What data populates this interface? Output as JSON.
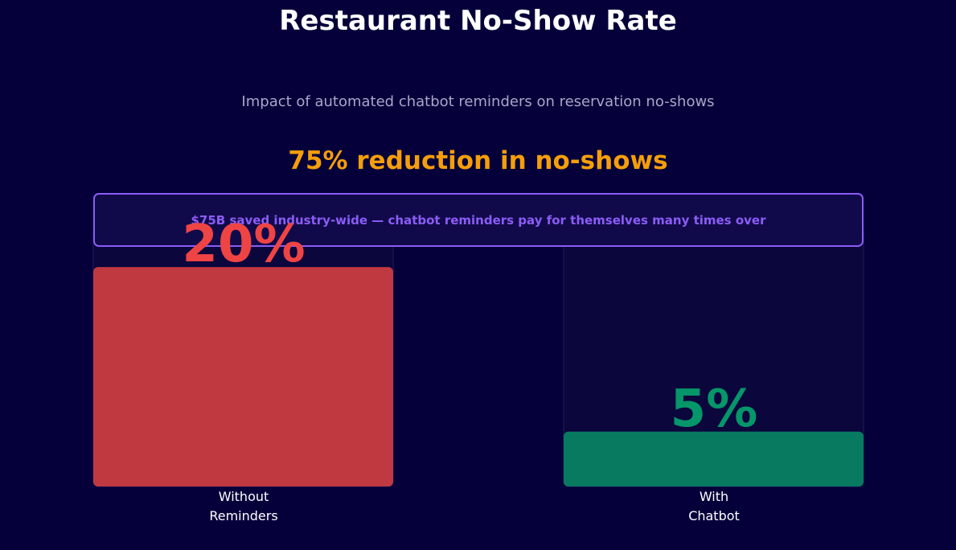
{
  "chart_data": {
    "type": "bar",
    "title": "Restaurant No-Show Rate",
    "subtitle": "Impact of automated chatbot reminders on reservation no-shows",
    "headline": "75% reduction in no-shows",
    "annotation": "$75B saved industry-wide — chatbot reminders pay for themselves many times over",
    "categories": [
      "Without\nReminders",
      "With\nChatbot"
    ],
    "values": [
      20,
      5
    ],
    "value_labels": [
      "20%",
      "5%"
    ],
    "colors": [
      "#c03840",
      "#087a60"
    ],
    "value_label_colors": [
      "#ef4444",
      "#059669"
    ],
    "ylim": [
      0,
      23.6
    ],
    "grid": false
  },
  "theme": {
    "background": "#05003a",
    "headline_color": "#f59e0b",
    "banner_color": "#8b5cf6",
    "track_color": "#0b063c"
  }
}
